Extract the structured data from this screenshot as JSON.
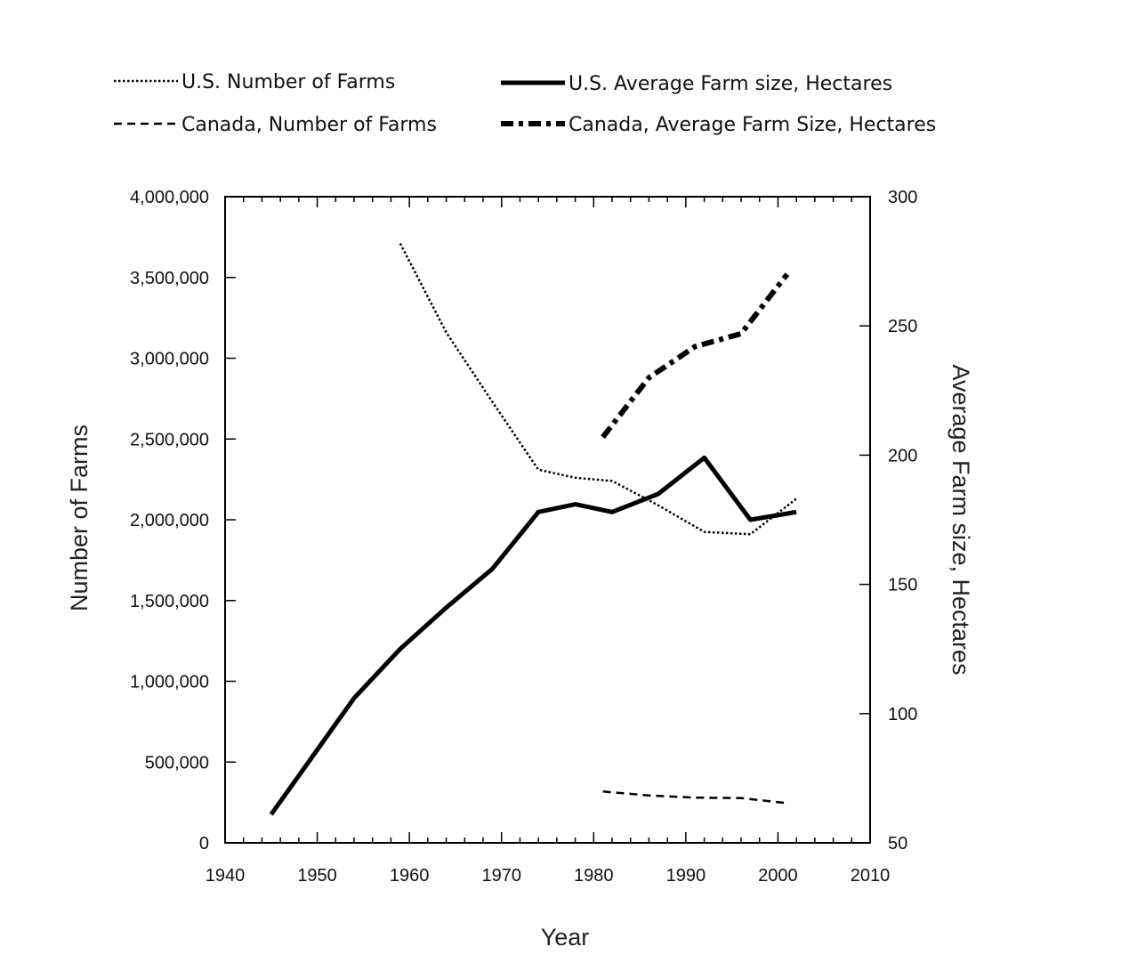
{
  "chart_data": {
    "type": "line",
    "title": "",
    "xlabel": "Year",
    "ylabel_left": "Number of Farms",
    "ylabel_right": "Average Farm size, Hectares",
    "xlim": [
      1940,
      2010
    ],
    "ylim_left": [
      0,
      4000000
    ],
    "ylim_right": [
      50,
      300
    ],
    "x_ticks": [
      "1940",
      "1950",
      "1960",
      "1970",
      "1980",
      "1990",
      "2000",
      "2010"
    ],
    "y_left_ticks": [
      "0",
      "500,000",
      "1,000,000",
      "1,500,000",
      "2,000,000",
      "2,500,000",
      "3,000,000",
      "3,500,000",
      "4,000,000"
    ],
    "y_right_ticks": [
      "50",
      "100",
      "150",
      "200",
      "250",
      "300"
    ],
    "grid": false,
    "legend_position": "top",
    "series": [
      {
        "name": "U.S. Number of Farms",
        "axis": "left",
        "style": "dotted",
        "points": [
          [
            1959,
            3710000
          ],
          [
            1964,
            3160000
          ],
          [
            1969,
            2730000
          ],
          [
            1974,
            2310000
          ],
          [
            1978,
            2260000
          ],
          [
            1982,
            2240000
          ],
          [
            1987,
            2090000
          ],
          [
            1992,
            1925000
          ],
          [
            1997,
            1910000
          ],
          [
            2002,
            2130000
          ]
        ]
      },
      {
        "name": "U.S. Average Farm size, Hectares",
        "axis": "right",
        "style": "solid",
        "points": [
          [
            1945,
            61
          ],
          [
            1950,
            86
          ],
          [
            1954,
            106
          ],
          [
            1959,
            125
          ],
          [
            1964,
            141
          ],
          [
            1969,
            156
          ],
          [
            1974,
            178
          ],
          [
            1978,
            181
          ],
          [
            1982,
            178
          ],
          [
            1987,
            185
          ],
          [
            1992,
            199
          ],
          [
            1997,
            175
          ],
          [
            2002,
            178
          ]
        ]
      },
      {
        "name": "Canada, Number of Farms",
        "axis": "left",
        "style": "dashed",
        "points": [
          [
            1981,
            318000
          ],
          [
            1986,
            293000
          ],
          [
            1991,
            280000
          ],
          [
            1996,
            277000
          ],
          [
            2001,
            246000
          ]
        ]
      },
      {
        "name": "Canada, Average Farm Size, Hectares",
        "axis": "right",
        "style": "dash-dot",
        "points": [
          [
            1981,
            207
          ],
          [
            1986,
            230
          ],
          [
            1991,
            242
          ],
          [
            1996,
            247
          ],
          [
            2001,
            270
          ]
        ]
      }
    ]
  }
}
